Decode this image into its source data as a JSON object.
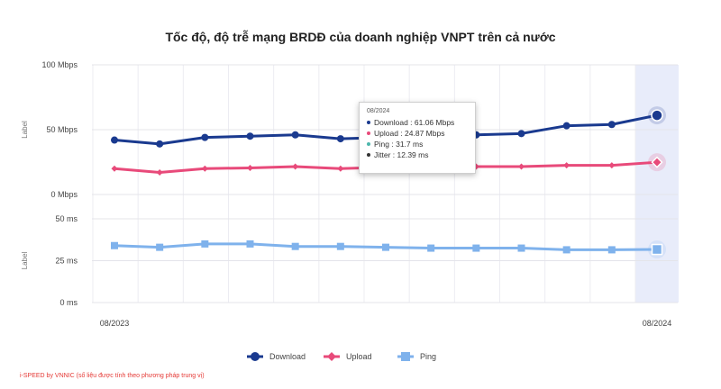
{
  "chart_data": {
    "type": "line",
    "title": "Tốc độ, độ trễ mạng BRDĐ của doanh nghiệp VNPT trên cả nước",
    "n_points": 13,
    "x_tick_labels": [
      "08/2023",
      "08/2024"
    ],
    "panels": [
      {
        "ylabel": "Label",
        "ylim": [
          0,
          100
        ],
        "y_ticks": [
          {
            "value": 100,
            "label": "100 Mbps"
          },
          {
            "value": 50,
            "label": "50 Mbps"
          },
          {
            "value": 0,
            "label": "0 Mbps"
          }
        ],
        "series": [
          {
            "name": "Download",
            "color": "#1a3a8f",
            "marker": "circle",
            "values": [
              42,
              39,
              44,
              45,
              46,
              43,
              44,
              45,
              46,
              47,
              53,
              54,
              61.06
            ]
          },
          {
            "name": "Upload",
            "color": "#e84a7a",
            "marker": "diamond",
            "values": [
              20,
              17,
              20,
              20.5,
              21.5,
              20,
              21,
              21,
              21.5,
              21.5,
              22.5,
              22.5,
              24.87
            ]
          }
        ]
      },
      {
        "ylabel": "Label",
        "ylim": [
          0,
          50
        ],
        "y_ticks": [
          {
            "value": 50,
            "label": "50 ms"
          },
          {
            "value": 25,
            "label": "25 ms"
          },
          {
            "value": 0,
            "label": "0 ms"
          }
        ],
        "series": [
          {
            "name": "Ping",
            "color": "#7fb2ec",
            "marker": "square",
            "values": [
              34,
              33,
              35,
              35,
              33.5,
              33.5,
              33,
              32.5,
              32.5,
              32.5,
              31.5,
              31.5,
              31.7
            ]
          }
        ]
      }
    ],
    "legend": {
      "position": "bottom",
      "items": [
        {
          "name": "Download",
          "color": "#1a3a8f",
          "marker": "circle"
        },
        {
          "name": "Upload",
          "color": "#e84a7a",
          "marker": "diamond"
        },
        {
          "name": "Ping",
          "color": "#7fb2ec",
          "marker": "square"
        }
      ]
    },
    "tooltip": {
      "date": "08/2024",
      "rows": [
        {
          "text": "Download : 61.06 Mbps",
          "color": "#1a3a8f"
        },
        {
          "text": "Upload : 24.87 Mbps",
          "color": "#e84a7a"
        },
        {
          "text": "Ping : 31.7 ms",
          "color": "#4db6ac"
        },
        {
          "text": "Jitter : 12.39 ms",
          "color": "#333333"
        }
      ]
    },
    "highlight_index": 12,
    "highlight_color": "#e8ecfa",
    "grid": true
  },
  "footer": {
    "text": "i-SPEED by VNNIC (số liệu được tính theo phương pháp trung vị)"
  }
}
